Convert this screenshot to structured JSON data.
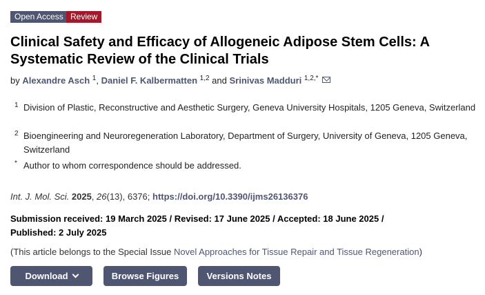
{
  "badges": {
    "open_access": "Open Access",
    "review": "Review"
  },
  "colors": {
    "open_access": "#4f5671",
    "review": "#a01a2c",
    "link": "#4f5671",
    "button": "#4f5671"
  },
  "title": "Clinical Safety and Efficacy of Allogeneic Adipose Stem Cells: A Systematic Review of the Clinical Trials",
  "authors": {
    "by": "by",
    "list": [
      {
        "name": "Alexandre Asch",
        "sup": "1"
      },
      {
        "name": "Daniel F. Kalbermatten",
        "sup": "1,2"
      },
      {
        "name": "Srinivas Madduri",
        "sup": "1,2,*"
      }
    ],
    "comma": ",",
    "and": "and",
    "email_icon": "envelope-icon"
  },
  "affiliations": [
    {
      "mark": "1",
      "text": "Division of Plastic, Reconstructive and Aesthetic Surgery, Geneva University Hospitals, 1205 Geneva, Switzerland"
    },
    {
      "mark": "2",
      "text": "Bioengineering and Neuroregeneration Laboratory, Department of Surgery, University of Geneva, 1205 Geneva, Switzerland"
    },
    {
      "mark": "*",
      "text": "Author to whom correspondence should be addressed."
    }
  ],
  "citation": {
    "journal": "Int. J. Mol. Sci.",
    "year": "2025",
    "volume": "26",
    "issue": "(13), 6376; ",
    "doi": "https://doi.org/10.3390/ijms26136376"
  },
  "dates": {
    "line1": "Submission received: 19 March 2025 / Revised: 17 June 2025 / Accepted: 18 June 2025 /",
    "line2": "Published: 2 July 2025"
  },
  "special_issue": {
    "prefix": "(This article belongs to the Special Issue ",
    "link": "Novel Approaches for Tissue Repair and Tissue Regeneration",
    "suffix": ")"
  },
  "buttons": {
    "download": "Download",
    "browse": "Browse Figures",
    "versions": "Versions Notes"
  }
}
